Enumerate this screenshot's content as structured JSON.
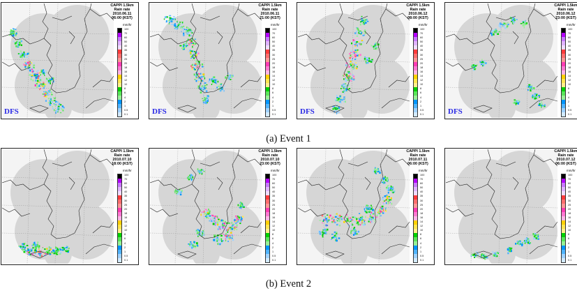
{
  "colors": {
    "accent_dfs": "#2a2ae6",
    "coverage": "#d6d6d6",
    "colorbar": [
      "#000000",
      "#b400ff",
      "#c878ff",
      "#e0b4ff",
      "#f0dcff",
      "#ff3c3c",
      "#ff6e6e",
      "#ff9696",
      "#ff3cb4",
      "#ff78d2",
      "#ffb4e6",
      "#ffd200",
      "#ffe650",
      "#fff08c",
      "#00d200",
      "#5ae65a",
      "#96f096",
      "#0096ff",
      "#50b4ff",
      "#a0d2ff",
      "#d2eaff"
    ]
  },
  "colorbar_ticks": [
    "100",
    "70",
    "60",
    "50",
    "40",
    "35",
    "30",
    "25",
    "20",
    "18",
    "16",
    "14",
    "12",
    "10",
    "8",
    "6",
    "4",
    "2",
    "1",
    "0.5",
    "0.1"
  ],
  "panels": [
    {
      "title": "CAPPI 1.5km",
      "subtitle": "Rain rate",
      "date": "2010.06.11",
      "time": "06:00 (KST)",
      "unit": "mm/hr",
      "dfs": "DFS",
      "rain": [
        [
          14,
          40,
          5,
          0.7
        ],
        [
          22,
          55,
          5,
          0.7
        ],
        [
          30,
          72,
          6,
          0.8
        ],
        [
          38,
          88,
          6,
          0.9
        ],
        [
          46,
          102,
          6,
          0.9
        ],
        [
          54,
          116,
          6,
          0.9
        ],
        [
          62,
          128,
          6,
          0.9
        ],
        [
          70,
          140,
          6,
          0.8
        ],
        [
          80,
          150,
          6,
          0.7
        ],
        [
          58,
          98,
          4,
          0.6
        ],
        [
          68,
          108,
          4,
          0.5
        ]
      ]
    },
    {
      "title": "CAPPI 1.5km",
      "subtitle": "Rain rate",
      "date": "2010.06.11",
      "time": "21:00 (KST)",
      "unit": "mm/hr",
      "dfs": "DFS",
      "rain": [
        [
          28,
          22,
          6,
          0.8
        ],
        [
          40,
          30,
          6,
          0.8
        ],
        [
          52,
          40,
          6,
          0.8
        ],
        [
          58,
          55,
          6,
          0.9
        ],
        [
          62,
          72,
          6,
          0.9
        ],
        [
          66,
          88,
          6,
          0.9
        ],
        [
          70,
          104,
          6,
          0.9
        ],
        [
          74,
          120,
          6,
          0.8
        ],
        [
          80,
          136,
          5,
          0.7
        ],
        [
          90,
          110,
          5,
          0.6
        ],
        [
          100,
          120,
          5,
          0.5
        ],
        [
          112,
          104,
          4,
          0.4
        ],
        [
          48,
          60,
          4,
          0.5
        ]
      ]
    },
    {
      "title": "CAPPI 1.5km",
      "subtitle": "Rain rate",
      "date": "2010.06.12",
      "time": "08:00 (KST)",
      "unit": "mm/hr",
      "dfs": "DFS",
      "rain": [
        [
          92,
          24,
          5,
          0.7
        ],
        [
          88,
          40,
          6,
          0.8
        ],
        [
          84,
          56,
          6,
          0.9
        ],
        [
          80,
          72,
          6,
          0.9
        ],
        [
          76,
          88,
          6,
          0.9
        ],
        [
          72,
          104,
          6,
          0.9
        ],
        [
          66,
          120,
          6,
          0.8
        ],
        [
          60,
          136,
          6,
          0.7
        ],
        [
          54,
          150,
          5,
          0.6
        ],
        [
          100,
          80,
          5,
          0.5
        ],
        [
          110,
          60,
          4,
          0.4
        ]
      ]
    },
    {
      "title": "CAPPI 1.5km",
      "subtitle": "Rain rate",
      "date": "2010.06.12",
      "time": "23:00 (KST)",
      "unit": "mm/hr",
      "dfs": "DFS",
      "rain": [
        [
          70,
          40,
          5,
          0.6
        ],
        [
          82,
          30,
          5,
          0.6
        ],
        [
          96,
          22,
          4,
          0.5
        ],
        [
          112,
          28,
          4,
          0.4
        ],
        [
          40,
          90,
          4,
          0.4
        ],
        [
          52,
          84,
          4,
          0.4
        ],
        [
          120,
          120,
          4,
          0.5
        ],
        [
          128,
          132,
          4,
          0.5
        ],
        [
          136,
          144,
          4,
          0.5
        ],
        [
          100,
          140,
          3,
          0.4
        ]
      ]
    },
    {
      "title": "CAPPI 1.5km",
      "subtitle": "Rain rate",
      "date": "2010.07.10",
      "time": "18:00 (KST)",
      "unit": "mm/hr",
      "dfs": "",
      "rain": [
        [
          30,
          140,
          5,
          0.8
        ],
        [
          42,
          144,
          6,
          0.9
        ],
        [
          54,
          146,
          6,
          0.9
        ],
        [
          66,
          146,
          6,
          0.9
        ],
        [
          78,
          144,
          5,
          0.8
        ],
        [
          90,
          142,
          4,
          0.6
        ],
        [
          48,
          136,
          4,
          0.6
        ]
      ]
    },
    {
      "title": "CAPPI 1.5km",
      "subtitle": "Rain rate",
      "date": "2010.07.10",
      "time": "23:00 (KST)",
      "unit": "mm/hr",
      "dfs": "",
      "rain": [
        [
          80,
          92,
          6,
          0.9
        ],
        [
          92,
          100,
          7,
          1.0
        ],
        [
          104,
          108,
          7,
          1.0
        ],
        [
          116,
          112,
          7,
          1.0
        ],
        [
          126,
          100,
          6,
          0.9
        ],
        [
          112,
          124,
          6,
          0.9
        ],
        [
          96,
          128,
          6,
          0.8
        ],
        [
          70,
          120,
          5,
          0.7
        ],
        [
          60,
          136,
          5,
          0.6
        ],
        [
          40,
          60,
          4,
          0.5
        ],
        [
          56,
          40,
          4,
          0.5
        ],
        [
          72,
          30,
          4,
          0.4
        ],
        [
          130,
          80,
          4,
          0.5
        ]
      ]
    },
    {
      "title": "CAPPI 1.5km",
      "subtitle": "Rain rate",
      "date": "2010.07.11",
      "time": "06:00 (KST)",
      "unit": "mm/hr",
      "dfs": "",
      "rain": [
        [
          40,
          100,
          7,
          1.0
        ],
        [
          56,
          100,
          7,
          1.0
        ],
        [
          72,
          100,
          7,
          1.0
        ],
        [
          88,
          100,
          7,
          1.0
        ],
        [
          104,
          96,
          7,
          1.0
        ],
        [
          118,
          88,
          6,
          0.9
        ],
        [
          128,
          72,
          6,
          0.9
        ],
        [
          132,
          56,
          5,
          0.8
        ],
        [
          124,
          42,
          5,
          0.7
        ],
        [
          112,
          30,
          4,
          0.6
        ],
        [
          36,
          118,
          5,
          0.7
        ],
        [
          52,
          124,
          5,
          0.7
        ],
        [
          80,
          116,
          5,
          0.6
        ],
        [
          100,
          84,
          5,
          0.7
        ]
      ]
    },
    {
      "title": "CAPPI 1.5km",
      "subtitle": "Rain rate",
      "date": "2010.07.12",
      "time": "06:00 (KST)",
      "unit": "mm/hr",
      "dfs": "",
      "rain": [
        [
          40,
          150,
          4,
          0.5
        ],
        [
          54,
          152,
          4,
          0.5
        ],
        [
          70,
          150,
          4,
          0.5
        ],
        [
          90,
          144,
          4,
          0.5
        ],
        [
          104,
          134,
          4,
          0.5
        ],
        [
          116,
          130,
          4,
          0.5
        ],
        [
          128,
          124,
          4,
          0.4
        ]
      ]
    }
  ],
  "captions": {
    "event1": "(a) Event 1",
    "event2": "(b) Event 2"
  }
}
